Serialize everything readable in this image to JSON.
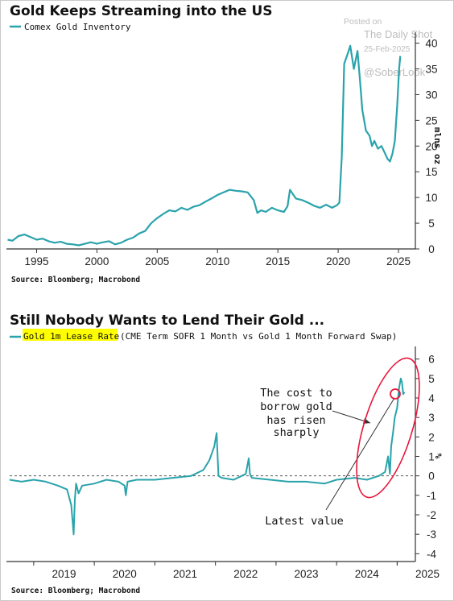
{
  "watermark": {
    "posted_on": "Posted on",
    "publisher": "The Daily Shot",
    "date": "25-Feb-2025",
    "handle": "@SoberLook"
  },
  "colors": {
    "series": "#2aa3ab",
    "highlight": "#ffff00",
    "annotation": "#e8173c",
    "axis": "#333333"
  },
  "chart_data": [
    {
      "type": "line",
      "title": "Gold Keeps Streaming into the US",
      "legend": [
        "Comex Gold Inventory"
      ],
      "ylabel": "mlns oz",
      "source": "Source: Bloomberg; Macrobond",
      "x_ticks": [
        "1995",
        "2000",
        "2005",
        "2010",
        "2015",
        "2020",
        "2025"
      ],
      "y_ticks": [
        "0",
        "5",
        "10",
        "15",
        "20",
        "25",
        "30",
        "35",
        "40"
      ],
      "xlim": [
        1992.5,
        2026.4
      ],
      "ylim": [
        0,
        41.5
      ],
      "grid": false,
      "series": [
        {
          "name": "Comex Gold Inventory",
          "x": [
            1992.6,
            1993.0,
            1993.5,
            1994.0,
            1994.5,
            1995.0,
            1995.5,
            1996.0,
            1996.5,
            1997.0,
            1997.5,
            1998.0,
            1998.5,
            1999.0,
            1999.5,
            2000.0,
            2000.5,
            2001.0,
            2001.5,
            2002.0,
            2002.5,
            2003.0,
            2003.5,
            2004.0,
            2004.5,
            2005.0,
            2005.5,
            2006.0,
            2006.5,
            2007.0,
            2007.5,
            2008.0,
            2008.5,
            2009.0,
            2009.5,
            2010.0,
            2010.5,
            2011.0,
            2011.5,
            2012.0,
            2012.5,
            2013.0,
            2013.3,
            2013.6,
            2014.0,
            2014.5,
            2015.0,
            2015.5,
            2015.8,
            2016.0,
            2016.5,
            2017.0,
            2017.5,
            2018.0,
            2018.5,
            2019.0,
            2019.5,
            2019.9,
            2020.1,
            2020.3,
            2020.5,
            2020.8,
            2021.0,
            2021.3,
            2021.6,
            2021.8,
            2022.0,
            2022.3,
            2022.6,
            2022.8,
            2023.0,
            2023.3,
            2023.6,
            2023.9,
            2024.1,
            2024.3,
            2024.5,
            2024.7,
            2024.9,
            2025.05,
            2025.15
          ],
          "values": [
            1.8,
            1.6,
            2.5,
            2.8,
            2.3,
            1.8,
            2.0,
            1.5,
            1.2,
            1.4,
            1.0,
            0.9,
            0.7,
            1.0,
            1.3,
            1.0,
            1.3,
            1.5,
            0.9,
            1.2,
            1.8,
            2.2,
            3.0,
            3.5,
            5.0,
            6.0,
            6.8,
            7.5,
            7.3,
            8.0,
            7.6,
            8.2,
            8.5,
            9.2,
            9.8,
            10.5,
            11.0,
            11.5,
            11.3,
            11.2,
            11.0,
            9.5,
            7.0,
            7.5,
            7.2,
            8.0,
            7.5,
            7.2,
            8.3,
            11.5,
            9.8,
            9.5,
            9.0,
            8.4,
            8.0,
            8.6,
            8.0,
            8.5,
            9.0,
            18.0,
            36.0,
            38.0,
            39.5,
            35.0,
            38.5,
            33.0,
            27.0,
            23.0,
            22.0,
            20.0,
            21.0,
            19.5,
            20.0,
            18.5,
            17.5,
            17.0,
            18.5,
            21.0,
            28.0,
            35.0,
            37.5
          ]
        }
      ]
    },
    {
      "type": "line",
      "title": "Still Nobody Wants to Lend Their Gold ...",
      "legend": [
        "Gold 1m Lease Rate",
        "(CME Term SOFR 1 Month vs Gold 1 Month Forward Swap)"
      ],
      "ylabel": "%",
      "source": "Source: Bloomberg; Macrobond",
      "annotations": [
        "The cost to",
        "borrow gold",
        "has risen",
        "sharply",
        "Latest value"
      ],
      "x_ticks": [
        "2019",
        "2020",
        "2021",
        "2022",
        "2023",
        "2024",
        "2025"
      ],
      "y_ticks": [
        "-4",
        "-3",
        "-2",
        "-1",
        "0",
        "1",
        "2",
        "3",
        "4",
        "5",
        "6"
      ],
      "xlim": [
        2018.55,
        2025.3
      ],
      "ylim": [
        -4.4,
        6.4
      ],
      "grid": false,
      "zero_line": true,
      "series": [
        {
          "name": "Gold 1m Lease Rate",
          "x": [
            2018.6,
            2018.8,
            2019.0,
            2019.2,
            2019.4,
            2019.55,
            2019.62,
            2019.66,
            2019.68,
            2019.7,
            2019.74,
            2019.8,
            2020.0,
            2020.2,
            2020.4,
            2020.5,
            2020.52,
            2020.55,
            2020.7,
            2021.0,
            2021.3,
            2021.6,
            2021.8,
            2021.9,
            2021.98,
            2022.02,
            2022.05,
            2022.1,
            2022.3,
            2022.5,
            2022.55,
            2022.57,
            2022.6,
            2022.9,
            2023.2,
            2023.5,
            2023.8,
            2024.0,
            2024.3,
            2024.5,
            2024.7,
            2024.8,
            2024.85,
            2024.88,
            2024.9,
            2024.93,
            2024.96,
            2025.0,
            2025.03,
            2025.06,
            2025.08,
            2025.1,
            2025.12
          ],
          "values": [
            -0.2,
            -0.3,
            -0.2,
            -0.3,
            -0.5,
            -0.7,
            -1.5,
            -3.0,
            -1.2,
            -0.4,
            -0.9,
            -0.5,
            -0.4,
            -0.2,
            -0.3,
            -0.5,
            -1.0,
            -0.3,
            -0.2,
            -0.2,
            -0.1,
            0.0,
            0.3,
            0.8,
            1.5,
            2.2,
            0.0,
            -0.1,
            -0.2,
            0.1,
            0.9,
            0.1,
            -0.1,
            -0.2,
            -0.3,
            -0.3,
            -0.4,
            -0.2,
            -0.1,
            -0.2,
            0.0,
            0.2,
            1.0,
            0.1,
            1.5,
            2.2,
            3.0,
            3.5,
            4.5,
            5.0,
            4.8,
            4.2,
            4.3
          ]
        }
      ]
    }
  ]
}
